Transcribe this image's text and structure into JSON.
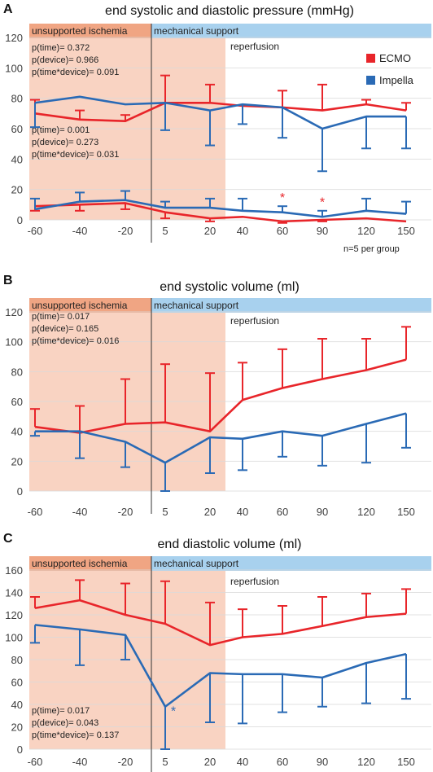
{
  "legend": {
    "items": [
      {
        "label": "ECMO",
        "color": "#e8252a"
      },
      {
        "label": "Impella",
        "color": "#2a6ab5"
      }
    ],
    "placement": "top-right of panel A"
  },
  "labels": {
    "unsupported": "unsupported ischemia",
    "mechanical": "mechanical support",
    "reperfusion": "reperfusion",
    "n_note": "n=5 per group",
    "star": "*"
  },
  "colors": {
    "ecmo": "#e8252a",
    "impella": "#2a6ab5",
    "ischemia_shade": "#f9d3c2",
    "ischemia_band": "#f0a583",
    "support_band": "#a8d1ee",
    "axis_text": "#404040",
    "grid": "#d9d9d9"
  },
  "chart_data": [
    {
      "panel": "A",
      "type": "line",
      "title": "end systolic and diastolic pressure (mmHg)",
      "categories": [
        "-60",
        "-40",
        "-20",
        "5",
        "20",
        "40",
        "60",
        "90",
        "120",
        "150"
      ],
      "ylim": [
        0,
        120
      ],
      "yticks": [
        0,
        20,
        40,
        60,
        80,
        100,
        120
      ],
      "grid": true,
      "stats": [
        {
          "block": 1,
          "lines": [
            "p(time)= 0.372",
            "p(device)= 0.966",
            "p(time*device)= 0.091"
          ]
        },
        {
          "block": 2,
          "lines": [
            "p(time)= 0.001",
            "p(device)= 0.273",
            "p(time*device)= 0.031"
          ]
        }
      ],
      "series": [
        {
          "name": "ECMO",
          "group": "systolic",
          "values": [
            70,
            66,
            65,
            77,
            77,
            75,
            74,
            72,
            76,
            72
          ],
          "errors": [
            9,
            6,
            4,
            18,
            12,
            0,
            11,
            17,
            3,
            5
          ],
          "error_dir": "up"
        },
        {
          "name": "Impella",
          "group": "systolic",
          "values": [
            77,
            81,
            76,
            77,
            72,
            76,
            74,
            60,
            68,
            68
          ],
          "errors": [
            16,
            0,
            0,
            18,
            23,
            13,
            20,
            28,
            21,
            21
          ],
          "error_dir": "down"
        },
        {
          "name": "ECMO",
          "group": "diastolic",
          "values": [
            9,
            10,
            11,
            5,
            1,
            2,
            -1,
            0,
            1,
            -1
          ],
          "errors": [
            3,
            4,
            4,
            4,
            2,
            0,
            1,
            1,
            0,
            0
          ],
          "error_dir": "down"
        },
        {
          "name": "Impella",
          "group": "diastolic",
          "values": [
            7,
            12,
            13,
            8,
            8,
            6,
            5,
            2,
            6,
            4
          ],
          "errors": [
            7,
            6,
            6,
            4,
            6,
            8,
            4,
            4,
            8,
            8
          ],
          "error_dir": "up"
        }
      ],
      "annotations": [
        {
          "text": "*",
          "category": "60",
          "y": 16,
          "color": "#e8252a"
        },
        {
          "text": "*",
          "category": "90",
          "y": 13,
          "color": "#e8252a"
        }
      ]
    },
    {
      "panel": "B",
      "type": "line",
      "title": "end systolic volume (ml)",
      "categories": [
        "-60",
        "-40",
        "-20",
        "5",
        "20",
        "40",
        "60",
        "90",
        "120",
        "150"
      ],
      "ylim": [
        0,
        120
      ],
      "yticks": [
        0,
        20,
        40,
        60,
        80,
        100,
        120
      ],
      "grid": true,
      "stats": [
        {
          "block": 1,
          "lines": [
            "p(time)= 0.017",
            "p(device)= 0.165",
            "p(time*device)= 0.016"
          ]
        }
      ],
      "series": [
        {
          "name": "ECMO",
          "values": [
            43,
            39,
            45,
            46,
            40,
            61,
            69,
            75,
            81,
            88
          ],
          "errors": [
            12,
            18,
            30,
            39,
            39,
            25,
            26,
            27,
            21,
            22
          ],
          "error_dir": "up"
        },
        {
          "name": "Impella",
          "values": [
            40,
            40,
            33,
            19,
            36,
            35,
            40,
            37,
            45,
            52
          ],
          "errors": [
            3,
            18,
            17,
            19,
            24,
            21,
            17,
            20,
            26,
            23
          ],
          "error_dir": "down"
        }
      ],
      "annotations": []
    },
    {
      "panel": "C",
      "type": "line",
      "title": "end diastolic volume (ml)",
      "categories": [
        "-60",
        "-40",
        "-20",
        "5",
        "20",
        "40",
        "60",
        "90",
        "120",
        "150"
      ],
      "ylim": [
        0,
        160
      ],
      "yticks": [
        0,
        20,
        40,
        60,
        80,
        100,
        120,
        140,
        160
      ],
      "grid": true,
      "stats": [
        {
          "block": 1,
          "lines": [
            "p(time)= 0.017",
            "p(device)= 0.043",
            "p(time*device)= 0.137"
          ]
        }
      ],
      "series": [
        {
          "name": "ECMO",
          "values": [
            126,
            133,
            120,
            112,
            93,
            100,
            103,
            110,
            118,
            121
          ],
          "errors": [
            10,
            18,
            28,
            38,
            38,
            25,
            25,
            26,
            21,
            22
          ],
          "error_dir": "up"
        },
        {
          "name": "Impella",
          "values": [
            111,
            107,
            102,
            38,
            68,
            67,
            67,
            64,
            77,
            85
          ],
          "errors": [
            16,
            32,
            22,
            38,
            44,
            44,
            34,
            26,
            36,
            40
          ],
          "error_dir": "down"
        }
      ],
      "annotations": [
        {
          "text": "*",
          "category": "5",
          "y": 36,
          "color": "#2a6ab5",
          "dx": 10
        }
      ]
    }
  ]
}
